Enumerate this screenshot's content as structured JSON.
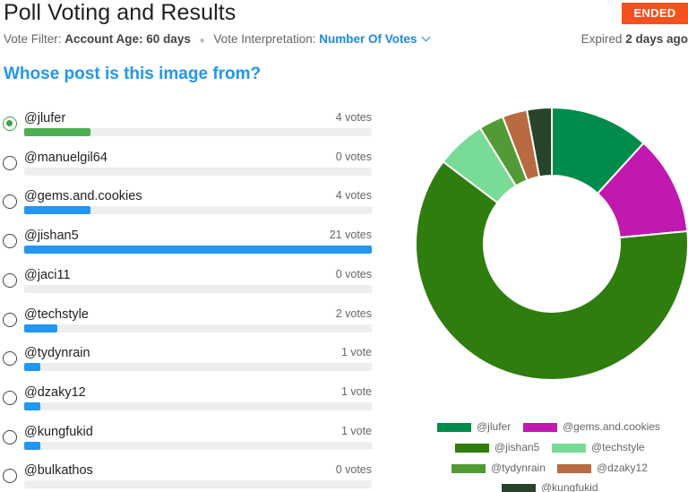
{
  "header": {
    "title": "Poll Voting and Results",
    "status_badge": "ENDED"
  },
  "meta": {
    "filter_label": "Vote Filter:",
    "filter_value": "Account Age: 60 days",
    "interp_label": "Vote Interpretation:",
    "interp_value": "Number Of Votes",
    "expired_label": "Expired",
    "expired_value": "2 days ago"
  },
  "question": "Whose post is this image from?",
  "options": [
    {
      "label": "@jlufer",
      "votes_text": "4 votes",
      "votes": 4,
      "selected": true
    },
    {
      "label": "@manuelgil64",
      "votes_text": "0 votes",
      "votes": 0,
      "selected": false
    },
    {
      "label": "@gems.and.cookies",
      "votes_text": "4 votes",
      "votes": 4,
      "selected": false
    },
    {
      "label": "@jishan5",
      "votes_text": "21 votes",
      "votes": 21,
      "selected": false
    },
    {
      "label": "@jaci11",
      "votes_text": "0 votes",
      "votes": 0,
      "selected": false
    },
    {
      "label": "@techstyle",
      "votes_text": "2 votes",
      "votes": 2,
      "selected": false
    },
    {
      "label": "@tydynrain",
      "votes_text": "1 vote",
      "votes": 1,
      "selected": false
    },
    {
      "label": "@dzaky12",
      "votes_text": "1 vote",
      "votes": 1,
      "selected": false
    },
    {
      "label": "@kungfukid",
      "votes_text": "1 vote",
      "votes": 1,
      "selected": false
    },
    {
      "label": "@bulkathos",
      "votes_text": "0 votes",
      "votes": 0,
      "selected": false
    }
  ],
  "colors": {
    "accent": "#2196f3",
    "selected_bar": "#4caf50",
    "badge": "#f4511e"
  },
  "chart_data": {
    "type": "pie",
    "categories": [
      "@jlufer",
      "@gems.and.cookies",
      "@jishan5",
      "@techstyle",
      "@tydynrain",
      "@dzaky12",
      "@kungfukid"
    ],
    "values": [
      4,
      4,
      21,
      2,
      1,
      1,
      1
    ],
    "colors": [
      "#008c4a",
      "#c118b0",
      "#2e7d0e",
      "#78dc96",
      "#519a35",
      "#b86a41",
      "#27432a"
    ],
    "donut": true,
    "legend_position": "bottom"
  }
}
